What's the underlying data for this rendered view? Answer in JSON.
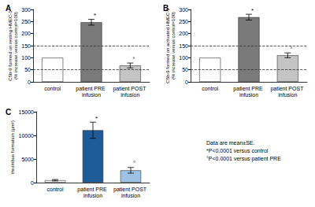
{
  "chart_data": [
    {
      "type": "bar",
      "title": "A",
      "ylabel": "C5b-9 formed on resting HMEC-1\n(% increase versus control=100)",
      "categories": [
        "control",
        "patient PRE infusion",
        "patient POST infusion"
      ],
      "values": [
        100,
        247,
        68
      ],
      "errors": [
        null,
        12,
        10
      ],
      "bar_annotations": [
        null,
        "*",
        "°"
      ],
      "colors": [
        "#ffffff",
        "#7a7a7a",
        "#c4c4c4"
      ],
      "reference_lines": [
        50,
        150
      ],
      "ylim": [
        0,
        300
      ],
      "yticks": [
        0,
        50,
        100,
        150,
        200,
        250,
        300
      ],
      "grid": false
    },
    {
      "type": "bar",
      "title": "B",
      "ylabel": "C5b-9 formed on activated HMEC-1\n(% increase versus control=100)",
      "categories": [
        "control",
        "patient PRE infusion",
        "patient POST infusion"
      ],
      "values": [
        100,
        268,
        110
      ],
      "errors": [
        null,
        12,
        10
      ],
      "bar_annotations": [
        null,
        "*",
        "°"
      ],
      "colors": [
        "#ffffff",
        "#7a7a7a",
        "#c4c4c4"
      ],
      "reference_lines": [
        50,
        150
      ],
      "ylim": [
        0,
        300
      ],
      "yticks": [
        0,
        50,
        100,
        150,
        200,
        250,
        300
      ],
      "grid": false
    },
    {
      "type": "bar",
      "title": "C",
      "ylabel": "thrombus formation (µm²)",
      "categories": [
        "control",
        "patient PRE infusion",
        "patient POST infusion"
      ],
      "values": [
        500,
        11100,
        2600
      ],
      "errors": [
        150,
        1700,
        600
      ],
      "bar_annotations": [
        null,
        "*",
        "°"
      ],
      "colors": [
        "#ffffff",
        "#1f5b99",
        "#9cc3e6"
      ],
      "ylim": [
        0,
        15000
      ],
      "yticks": [
        0,
        5000,
        10000,
        15000
      ],
      "grid": false,
      "annotations": [
        "Data are mean±SE.",
        "*P<0.0001 versus control",
        "°P<0.0001 versus patient PRE"
      ]
    }
  ]
}
